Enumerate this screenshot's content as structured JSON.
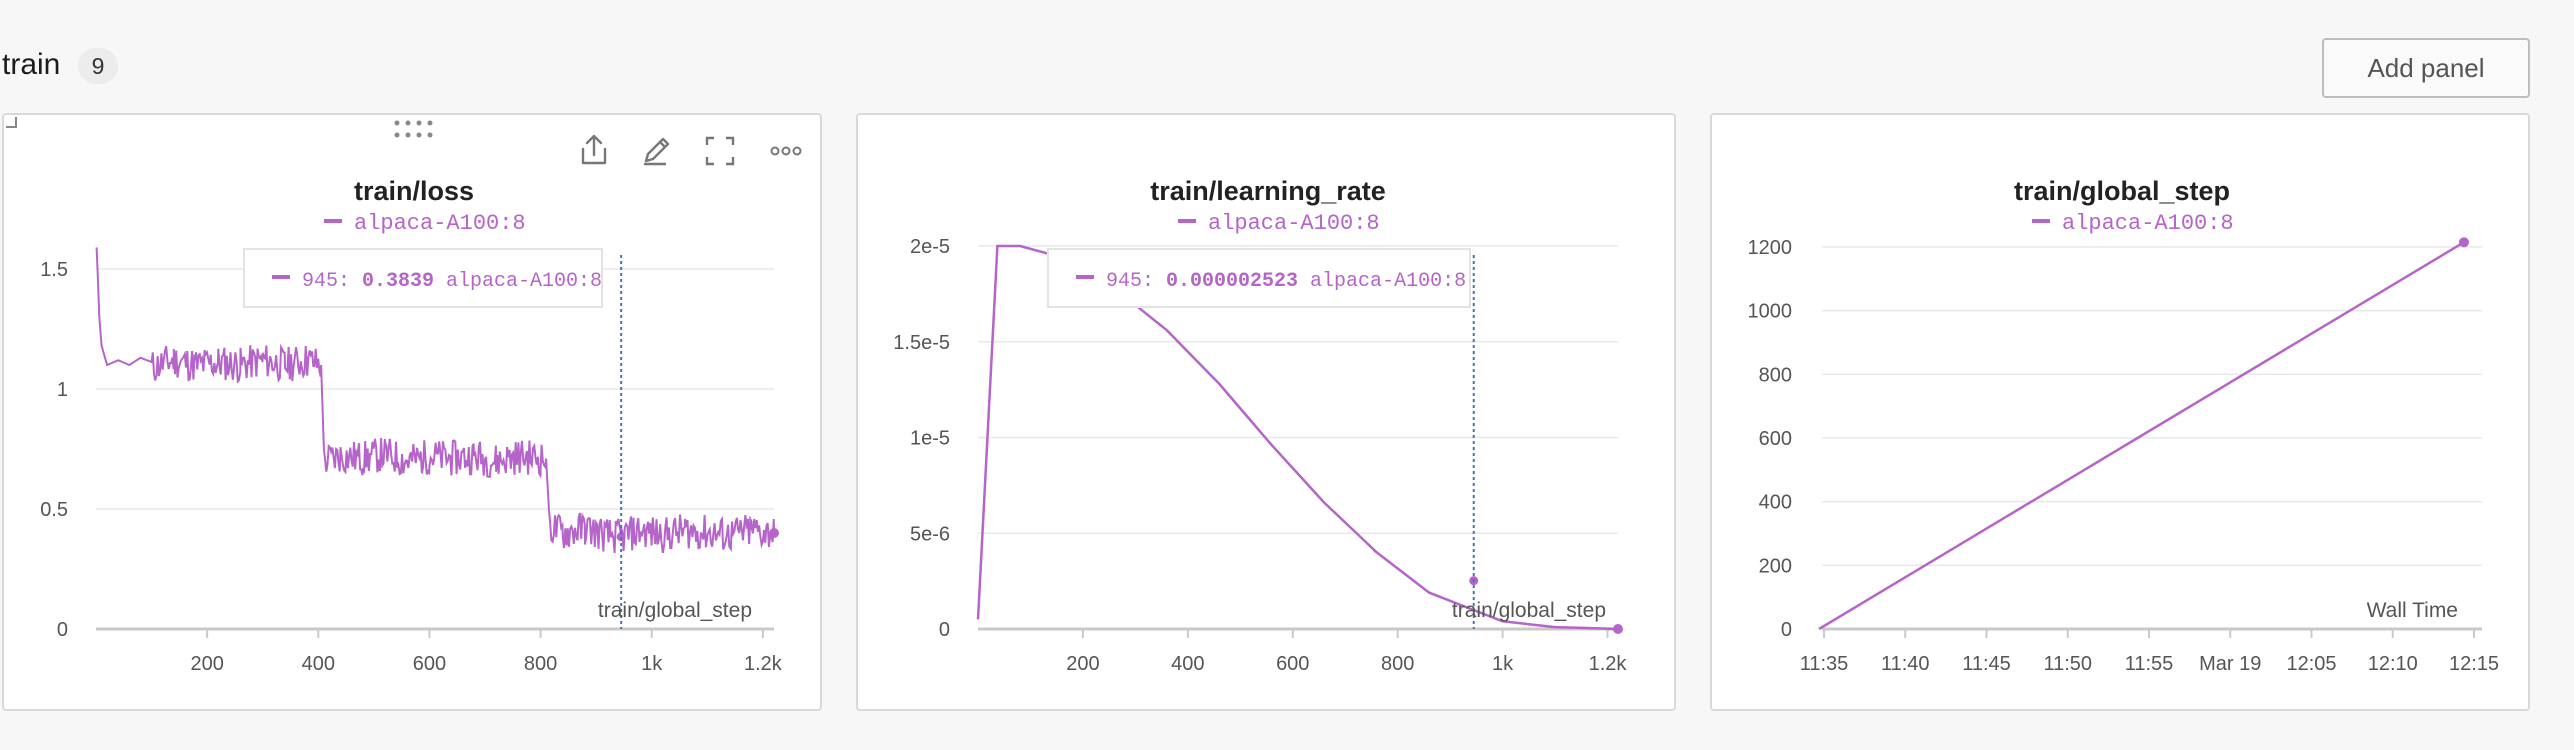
{
  "section": {
    "title": "train",
    "count": "9",
    "add_panel_label": "Add panel"
  },
  "colors": {
    "series": "#b565c9",
    "hover_line": "#3a78c2",
    "grid": "#e8e8e8",
    "axis": "#c9c9c9",
    "tick_text": "#555555"
  },
  "toolbar": {
    "icons": [
      "drag-handle-icon",
      "share-icon",
      "edit-icon",
      "fullscreen-icon",
      "more-options-icon"
    ]
  },
  "panels": [
    {
      "title": "train/loss",
      "legend": "alpaca-A100:8",
      "x_axis_label": "train/global_step",
      "tooltip": {
        "step": "945:",
        "value": "0.3839",
        "run": "alpaca-A100:8"
      }
    },
    {
      "title": "train/learning_rate",
      "legend": "alpaca-A100:8",
      "x_axis_label": "train/global_step",
      "tooltip": {
        "step": "945:",
        "value": "0.000002523",
        "run": "alpaca-A100:8"
      }
    },
    {
      "title": "train/global_step",
      "legend": "alpaca-A100:8",
      "x_axis_label": "Wall Time"
    }
  ],
  "chart_data": [
    {
      "type": "line",
      "title": "train/loss",
      "xlabel": "train/global_step",
      "ylabel": "",
      "xlim": [
        0,
        1220
      ],
      "ylim": [
        0,
        1.6
      ],
      "x_ticks": [
        "200",
        "400",
        "600",
        "800",
        "1k",
        "1.2k"
      ],
      "y_ticks": [
        "0",
        "0.5",
        "1",
        "1.5"
      ],
      "series": [
        {
          "name": "alpaca-A100:8",
          "points": [
            [
              1,
              1.59
            ],
            [
              3,
              1.48
            ],
            [
              6,
              1.3
            ],
            [
              10,
              1.18
            ],
            [
              20,
              1.1
            ],
            [
              40,
              1.12
            ],
            [
              60,
              1.1
            ],
            [
              80,
              1.13
            ],
            [
              100,
              1.09
            ],
            [
              140,
              1.12
            ],
            [
              180,
              1.1
            ],
            [
              220,
              1.11
            ],
            [
              260,
              1.1
            ],
            [
              300,
              1.12
            ],
            [
              340,
              1.1
            ],
            [
              380,
              1.12
            ],
            [
              405,
              1.1
            ],
            [
              410,
              0.7
            ],
            [
              440,
              0.72
            ],
            [
              480,
              0.71
            ],
            [
              520,
              0.73
            ],
            [
              560,
              0.7
            ],
            [
              600,
              0.72
            ],
            [
              640,
              0.71
            ],
            [
              680,
              0.72
            ],
            [
              720,
              0.7
            ],
            [
              760,
              0.72
            ],
            [
              810,
              0.71
            ],
            [
              815,
              0.43
            ],
            [
              840,
              0.4
            ],
            [
              880,
              0.42
            ],
            [
              920,
              0.39
            ],
            [
              945,
              0.3839
            ],
            [
              980,
              0.41
            ],
            [
              1020,
              0.39
            ],
            [
              1060,
              0.41
            ],
            [
              1100,
              0.4
            ],
            [
              1140,
              0.39
            ],
            [
              1180,
              0.41
            ],
            [
              1220,
              0.4
            ]
          ]
        }
      ],
      "hover_x": 945
    },
    {
      "type": "line",
      "title": "train/learning_rate",
      "xlabel": "train/global_step",
      "ylabel": "",
      "xlim": [
        0,
        1220
      ],
      "ylim": [
        0,
        2e-05
      ],
      "x_ticks": [
        "200",
        "400",
        "600",
        "800",
        "1k",
        "1.2k"
      ],
      "y_ticks": [
        "0",
        "5e-6",
        "1e-5",
        "1.5e-5",
        "2e-5"
      ],
      "series": [
        {
          "name": "alpaca-A100:8",
          "points": [
            [
              0,
              5e-07
            ],
            [
              37,
              2e-05
            ],
            [
              80,
              2e-05
            ],
            [
              160,
              1.94e-05
            ],
            [
              260,
              1.78e-05
            ],
            [
              360,
              1.56e-05
            ],
            [
              460,
              1.28e-05
            ],
            [
              560,
              9.6e-06
            ],
            [
              660,
              6.6e-06
            ],
            [
              760,
              4e-06
            ],
            [
              860,
              1.9e-06
            ],
            [
              945,
              2.523e-06
            ],
            [
              1000,
              4e-07
            ],
            [
              1100,
              1e-07
            ],
            [
              1220,
              0.0
            ]
          ]
        }
      ],
      "hover_x": 945
    },
    {
      "type": "line",
      "title": "train/global_step",
      "xlabel": "Wall Time",
      "ylabel": "",
      "x_ticks": [
        "11:35",
        "11:40",
        "11:45",
        "11:50",
        "11:55",
        "Mar 19",
        "12:05",
        "12:10",
        "12:15"
      ],
      "y_ticks": [
        "0",
        "200",
        "400",
        "600",
        "800",
        "1000",
        "1200"
      ],
      "ylim": [
        0,
        1300
      ],
      "series": [
        {
          "name": "alpaca-A100:8",
          "points": [
            [
              "11:34",
              0
            ],
            [
              "12:15",
              1215
            ]
          ]
        }
      ]
    }
  ]
}
